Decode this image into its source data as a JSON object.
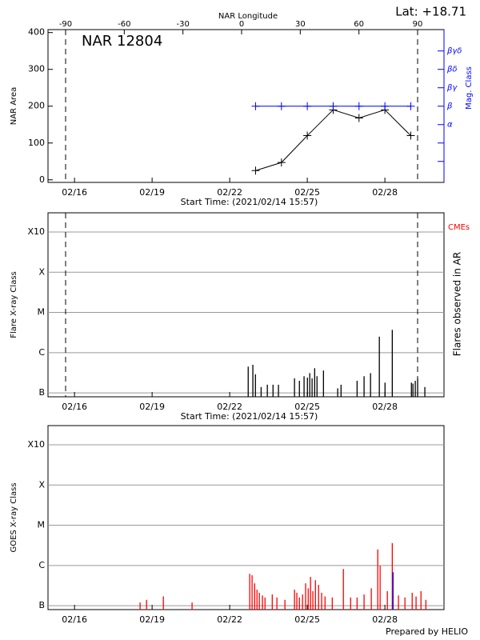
{
  "footer": "Prepared by HELIO",
  "chart_data": [
    {
      "type": "line",
      "title": "NAR 12804",
      "annotation": "Lat: +18.71",
      "x2label": "NAR Longitude",
      "ylabel": "NAR Area",
      "y2label": "Mag. Class",
      "xlabel": "Start Time: (2021/02/14 15:57)",
      "xlim": [
        0.31,
        15.62
      ],
      "xticks": [
        {
          "value": 1.335,
          "label": "02/16"
        },
        {
          "value": 4.335,
          "label": "02/19"
        },
        {
          "value": 7.335,
          "label": "02/22"
        },
        {
          "value": 10.335,
          "label": "02/25"
        },
        {
          "value": 13.335,
          "label": "02/28"
        }
      ],
      "x2lim": [
        -99,
        103.5
      ],
      "x2ticks": [
        -90,
        -60,
        -30,
        0,
        30,
        60,
        90
      ],
      "limbs": [
        -90,
        90
      ],
      "limb_lines": true,
      "ylim": [
        -7,
        408
      ],
      "yticks": [
        0,
        100,
        200,
        300,
        400
      ],
      "y2lim": [
        -0.14,
        8.16
      ],
      "y2ticks": [
        {
          "value": 1,
          "label": null
        },
        {
          "value": 2,
          "label": null
        },
        {
          "value": 3,
          "label": "α"
        },
        {
          "value": 4,
          "label": "β"
        },
        {
          "value": 5,
          "label": "βγ"
        },
        {
          "value": 6,
          "label": "βδ"
        },
        {
          "value": 7,
          "label": "βγδ"
        }
      ],
      "y2color": "#0000ff",
      "x": [
        8.335,
        9.335,
        10.335,
        11.335,
        12.335,
        13.335,
        14.335
      ],
      "series": [
        {
          "color": "#000000",
          "values": [
            25,
            47,
            120,
            190,
            168,
            190,
            120
          ]
        },
        {
          "color": "#0000ff",
          "axis": "y2",
          "values": [
            4,
            4,
            4,
            4,
            4,
            4,
            4
          ]
        }
      ]
    },
    {
      "type": "bar",
      "ylabel": "Flare X-ray Class",
      "y2label": "Flares observed in AR",
      "annotation": "CMEs",
      "annotation_color": "#ff0000",
      "xlabel": "Start Time: (2021/02/14 15:57)",
      "limb_lines": true,
      "ylog": true,
      "grid": true,
      "xlim": [
        0.31,
        15.62
      ],
      "xticks": [
        {
          "value": 1.335,
          "label": "02/16"
        },
        {
          "value": 4.335,
          "label": "02/19"
        },
        {
          "value": 7.335,
          "label": "02/22"
        },
        {
          "value": 10.335,
          "label": "02/25"
        },
        {
          "value": 13.335,
          "label": "02/28"
        }
      ],
      "ylim": [
        8e-08,
        0.003
      ],
      "yticks": [
        {
          "value": 1e-07,
          "label": "B"
        },
        {
          "value": 1e-06,
          "label": "C"
        },
        {
          "value": 1e-05,
          "label": "M"
        },
        {
          "value": 0.0001,
          "label": "X"
        },
        {
          "value": 0.001,
          "label": "X10"
        }
      ],
      "series": [
        {
          "color": "#000000",
          "x": [
            8.05,
            8.23,
            8.33,
            8.55,
            8.79,
            9.01,
            9.22,
            9.84,
            10.03,
            10.21,
            10.34,
            10.43,
            10.52,
            10.62,
            10.71,
            10.96,
            11.51,
            11.64,
            12.26,
            12.53,
            12.78,
            13.12,
            13.34,
            13.62,
            14.36,
            14.42,
            14.51,
            14.6,
            14.88
          ],
          "values": [
            4.5e-07,
            5e-07,
            2.9e-07,
            1.4e-07,
            1.6e-07,
            1.6e-07,
            1.6e-07,
            2.3e-07,
            2e-07,
            2.6e-07,
            2.4e-07,
            3.1e-07,
            2.3e-07,
            4.1e-07,
            2.6e-07,
            3.6e-07,
            1.3e-07,
            1.6e-07,
            2e-07,
            2.6e-07,
            3.1e-07,
            2.5e-06,
            1.8e-07,
            3.7e-06,
            1.8e-07,
            1.7e-07,
            2e-07,
            2.3e-07,
            1.4e-07
          ]
        }
      ]
    },
    {
      "type": "bar",
      "ylabel": "GOES X-ray Class",
      "ylog": true,
      "grid": true,
      "xlim": [
        0.31,
        15.62
      ],
      "xticks": [
        {
          "value": 1.335,
          "label": "02/16"
        },
        {
          "value": 4.335,
          "label": "02/19"
        },
        {
          "value": 7.335,
          "label": "02/22"
        },
        {
          "value": 10.335,
          "label": "02/25"
        },
        {
          "value": 13.335,
          "label": "02/28"
        }
      ],
      "ylim": [
        8e-08,
        0.003
      ],
      "yticks": [
        {
          "value": 1e-07,
          "label": "B"
        },
        {
          "value": 1e-06,
          "label": "C"
        },
        {
          "value": 1e-05,
          "label": "M"
        },
        {
          "value": 0.0001,
          "label": "X"
        },
        {
          "value": 0.001,
          "label": "X10"
        }
      ],
      "series": [
        {
          "color": "#ff0000",
          "x": [
            3.87,
            4.12,
            4.77,
            5.88,
            8.11,
            8.2,
            8.3,
            8.39,
            8.48,
            8.6,
            8.7,
            8.98,
            9.16,
            9.47,
            9.84,
            9.93,
            10.03,
            10.15,
            10.27,
            10.37,
            10.46,
            10.55,
            10.65,
            10.77,
            10.89,
            11.02,
            11.3,
            11.73,
            12.01,
            12.26,
            12.53,
            12.81,
            13.06,
            13.15,
            13.43,
            13.62,
            13.86,
            14.11,
            14.39,
            14.54,
            14.73,
            14.92
          ],
          "values": [
            1.2e-07,
            1.4e-07,
            1.7e-07,
            1.2e-07,
            6.2e-07,
            5.7e-07,
            3.6e-07,
            2.5e-07,
            2.1e-07,
            1.8e-07,
            1.6e-07,
            1.9e-07,
            1.6e-07,
            1.4e-07,
            2.5e-07,
            2.1e-07,
            1.6e-07,
            1.9e-07,
            3.6e-07,
            2.7e-07,
            5.2e-07,
            2.3e-07,
            4.3e-07,
            3.3e-07,
            2.1e-07,
            1.7e-07,
            1.6e-07,
            8.2e-07,
            1.6e-07,
            1.6e-07,
            1.9e-07,
            2.7e-07,
            2.5e-06,
            9.9e-07,
            2.3e-07,
            3.6e-06,
            1.8e-07,
            1.6e-07,
            2.1e-07,
            1.7e-07,
            2.3e-07,
            1.4e-07
          ]
        },
        {
          "color": "#0000ff",
          "x": [
            13.65
          ],
          "values": [
            6.8e-07
          ]
        }
      ]
    }
  ]
}
